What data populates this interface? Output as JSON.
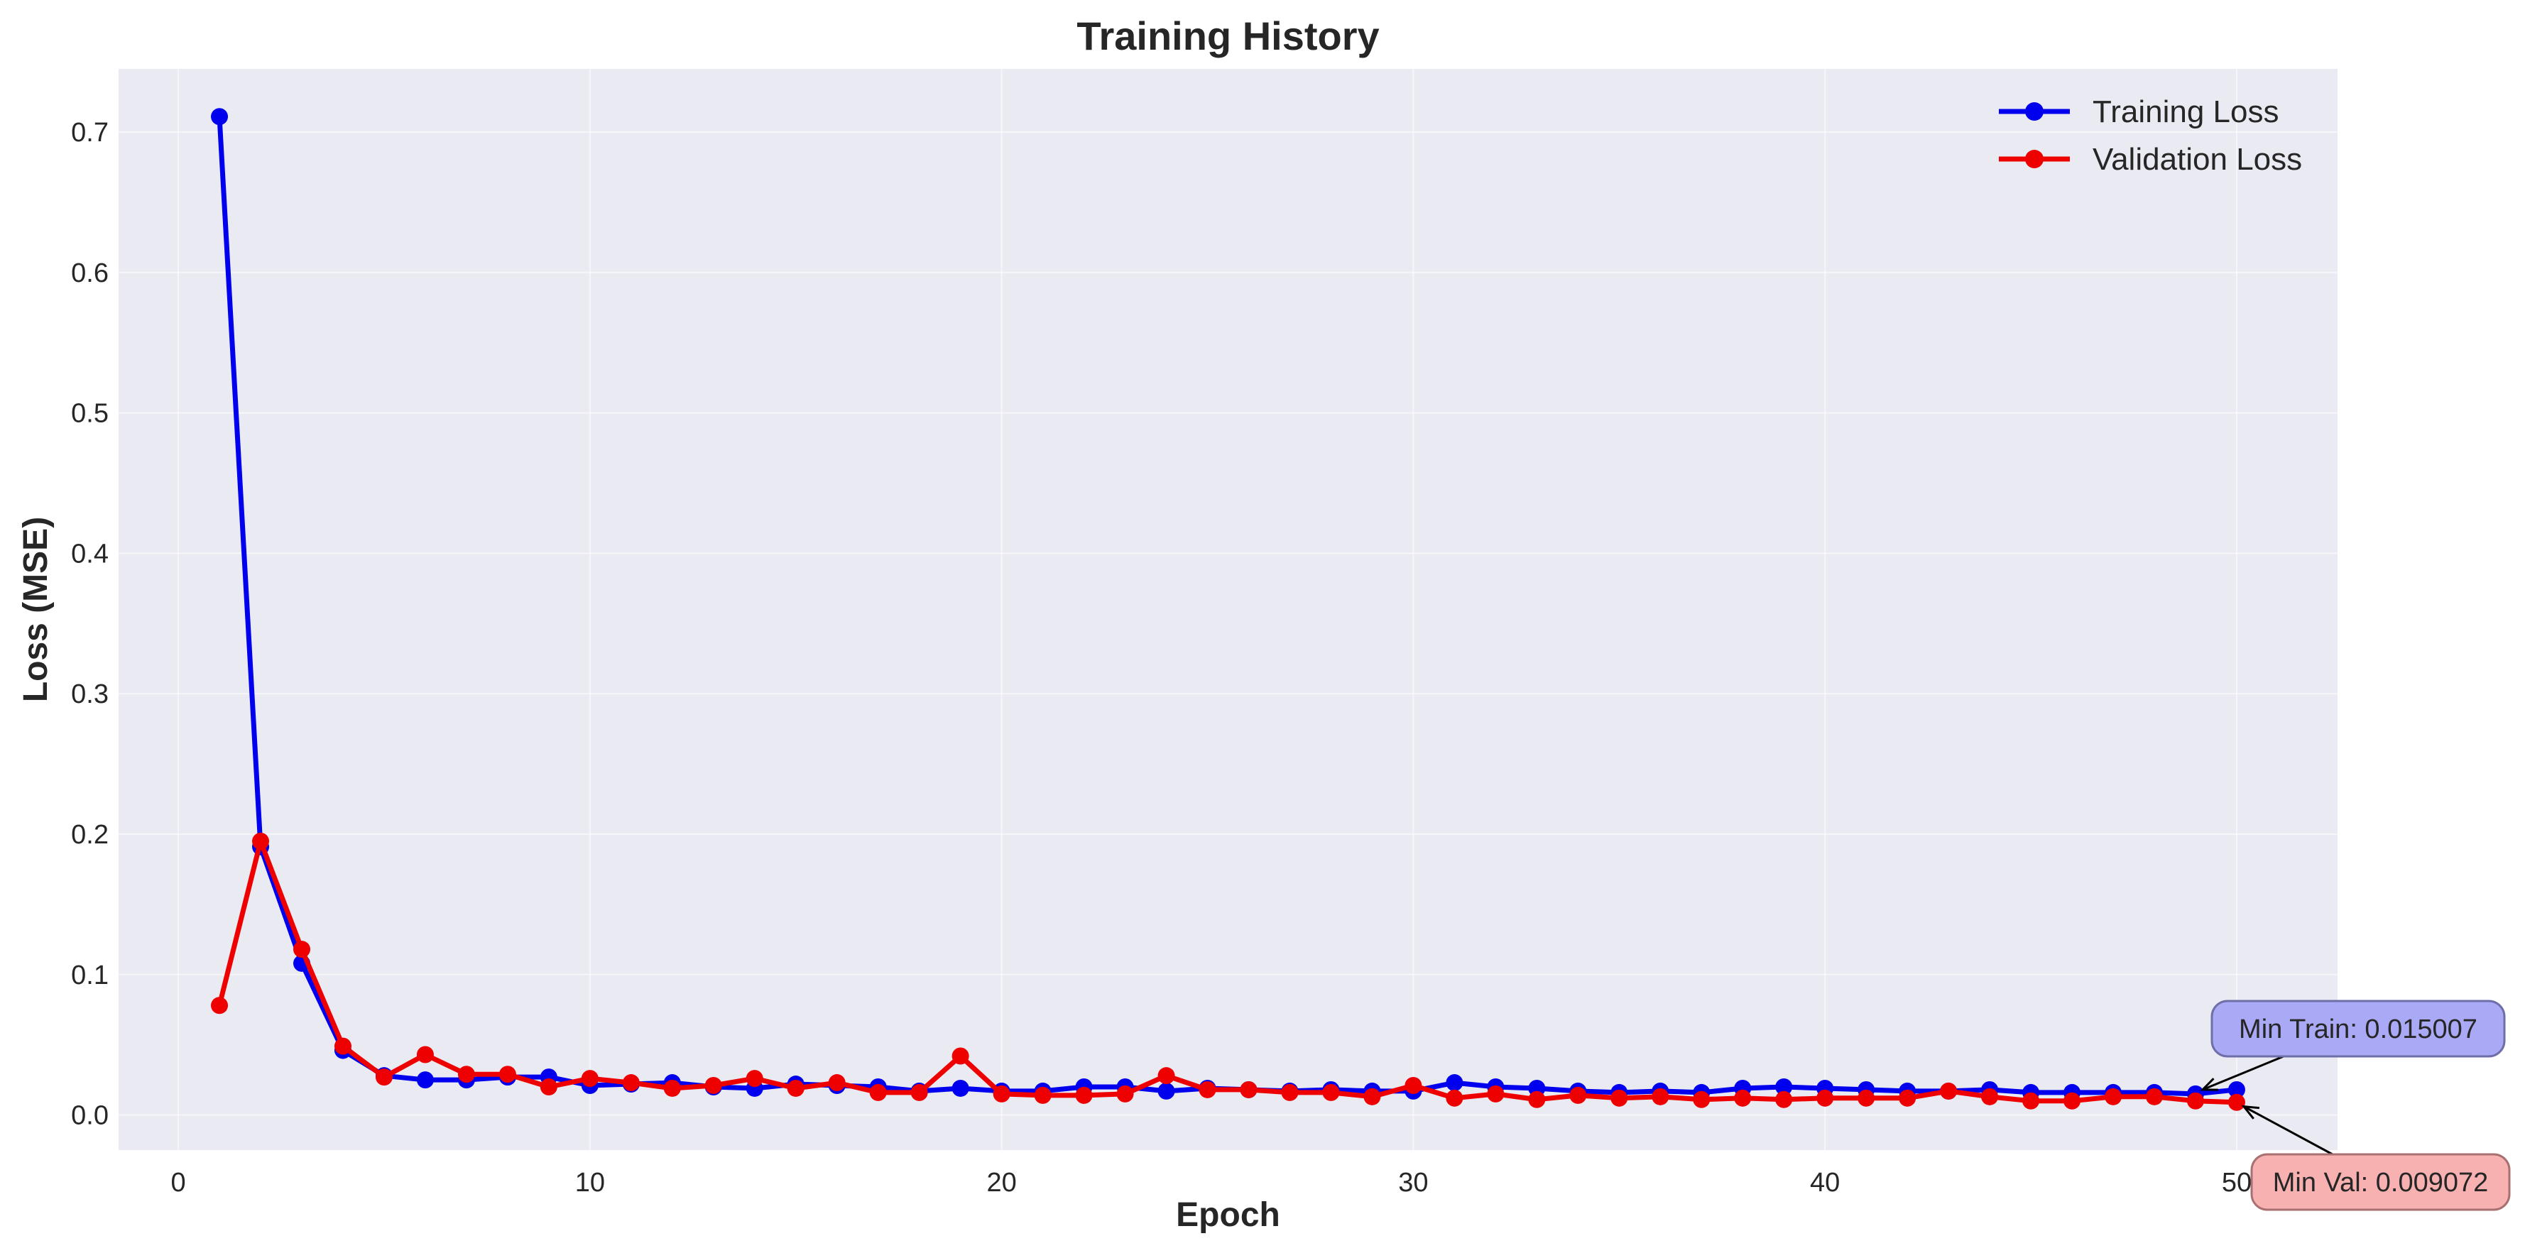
{
  "chart_data": {
    "type": "line",
    "title": "Training History",
    "xlabel": "Epoch",
    "ylabel": "Loss (MSE)",
    "xlim": [
      -1.45,
      52.45
    ],
    "ylim": [
      -0.025,
      0.745
    ],
    "x_ticks": [
      0,
      10,
      20,
      30,
      40,
      50
    ],
    "y_ticks": [
      0.0,
      0.1,
      0.2,
      0.3,
      0.4,
      0.5,
      0.6,
      0.7
    ],
    "x_tick_labels": [
      "0",
      "10",
      "20",
      "30",
      "40",
      "50"
    ],
    "y_tick_labels": [
      "0.0",
      "0.1",
      "0.2",
      "0.3",
      "0.4",
      "0.5",
      "0.6",
      "0.7"
    ],
    "grid": true,
    "legend_position": "top-right",
    "x": [
      1,
      2,
      3,
      4,
      5,
      6,
      7,
      8,
      9,
      10,
      11,
      12,
      13,
      14,
      15,
      16,
      17,
      18,
      19,
      20,
      21,
      22,
      23,
      24,
      25,
      26,
      27,
      28,
      29,
      30,
      31,
      32,
      33,
      34,
      35,
      36,
      37,
      38,
      39,
      40,
      41,
      42,
      43,
      44,
      45,
      46,
      47,
      48,
      49,
      50
    ],
    "series": [
      {
        "name": "Training Loss",
        "color": "#0000ee",
        "values": [
          0.711,
          0.191,
          0.108,
          0.046,
          0.028,
          0.025,
          0.025,
          0.027,
          0.027,
          0.021,
          0.022,
          0.023,
          0.02,
          0.019,
          0.022,
          0.021,
          0.02,
          0.017,
          0.019,
          0.017,
          0.017,
          0.02,
          0.02,
          0.017,
          0.019,
          0.018,
          0.017,
          0.018,
          0.017,
          0.017,
          0.023,
          0.02,
          0.019,
          0.017,
          0.016,
          0.017,
          0.016,
          0.019,
          0.02,
          0.019,
          0.018,
          0.017,
          0.017,
          0.018,
          0.016,
          0.016,
          0.016,
          0.016,
          0.015,
          0.018
        ]
      },
      {
        "name": "Validation Loss",
        "color": "#ee0000",
        "values": [
          0.078,
          0.195,
          0.118,
          0.049,
          0.027,
          0.043,
          0.029,
          0.029,
          0.02,
          0.026,
          0.023,
          0.019,
          0.021,
          0.026,
          0.019,
          0.023,
          0.016,
          0.016,
          0.042,
          0.015,
          0.014,
          0.014,
          0.015,
          0.028,
          0.018,
          0.018,
          0.016,
          0.016,
          0.013,
          0.021,
          0.012,
          0.015,
          0.011,
          0.014,
          0.012,
          0.013,
          0.011,
          0.012,
          0.011,
          0.012,
          0.012,
          0.012,
          0.017,
          0.013,
          0.01,
          0.01,
          0.013,
          0.013,
          0.01,
          0.009
        ]
      }
    ],
    "annotations": [
      {
        "text": "Min Train: 0.015007",
        "series": "Training Loss",
        "x": 49,
        "y": 0.015007,
        "fill": "#a9a9f6",
        "border": "#6e6ea8"
      },
      {
        "text": "Min Val: 0.009072",
        "series": "Validation Loss",
        "x": 50,
        "y": 0.009072,
        "fill": "#f8b1b1",
        "border": "#a87070"
      }
    ],
    "background": "#eaeaf2"
  }
}
